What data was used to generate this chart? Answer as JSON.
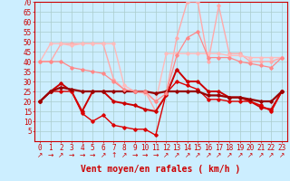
{
  "title": "",
  "xlabel": "Vent moyen/en rafales ( km/h )",
  "bg_color": "#cceeff",
  "grid_color": "#aacccc",
  "x": [
    0,
    1,
    2,
    3,
    4,
    5,
    6,
    7,
    8,
    9,
    10,
    11,
    12,
    13,
    14,
    15,
    16,
    17,
    18,
    19,
    20,
    21,
    22,
    23
  ],
  "ylim": [
    0,
    70
  ],
  "yticks": [
    5,
    10,
    15,
    20,
    25,
    30,
    35,
    40,
    45,
    50,
    55,
    60,
    65,
    70
  ],
  "series": [
    {
      "y": [
        40,
        40,
        49,
        49,
        49,
        49,
        49,
        31,
        26,
        25,
        25,
        15,
        24,
        52,
        70,
        70,
        40,
        68,
        44,
        44,
        40,
        40,
        40,
        42
      ],
      "color": "#ffaaaa",
      "lw": 1.0,
      "marker": "D",
      "ms": 1.8
    },
    {
      "y": [
        40,
        49,
        49,
        48,
        49,
        49,
        49,
        49,
        28,
        25,
        24,
        20,
        44,
        44,
        44,
        44,
        44,
        44,
        43,
        43,
        42,
        42,
        42,
        42
      ],
      "color": "#ffbbbb",
      "lw": 1.0,
      "marker": "D",
      "ms": 1.8
    },
    {
      "y": [
        20,
        25,
        29,
        25,
        15,
        25,
        25,
        20,
        19,
        18,
        16,
        15,
        23,
        36,
        30,
        30,
        25,
        25,
        22,
        22,
        20,
        17,
        16,
        25
      ],
      "color": "#cc0000",
      "lw": 1.4,
      "marker": "D",
      "ms": 1.8
    },
    {
      "y": [
        20,
        25,
        25,
        25,
        14,
        10,
        13,
        8,
        7,
        6,
        6,
        3,
        24,
        30,
        28,
        26,
        21,
        21,
        20,
        20,
        20,
        18,
        15,
        25
      ],
      "color": "#dd0000",
      "lw": 1.0,
      "marker": "D",
      "ms": 1.8
    },
    {
      "y": [
        20,
        25,
        27,
        26,
        25,
        25,
        25,
        25,
        25,
        25,
        25,
        24,
        25,
        25,
        25,
        25,
        23,
        23,
        22,
        22,
        21,
        20,
        20,
        25
      ],
      "color": "#990000",
      "lw": 1.6,
      "marker": "D",
      "ms": 1.8
    },
    {
      "y": [
        40,
        40,
        40,
        37,
        36,
        35,
        34,
        30,
        26,
        25,
        25,
        20,
        24,
        43,
        52,
        55,
        42,
        42,
        42,
        40,
        39,
        38,
        37,
        42
      ],
      "color": "#ff8888",
      "lw": 0.9,
      "marker": "D",
      "ms": 1.8
    }
  ],
  "tick_color": "#cc0000",
  "axis_label_color": "#cc0000",
  "axis_label_fontsize": 7,
  "tick_fontsize": 5.5,
  "arrow_chars": [
    "↗",
    "→",
    "↗",
    "→",
    "→",
    "→",
    "↗",
    "↑",
    "↗",
    "→",
    "→",
    "→",
    "↗",
    "↗",
    "↗",
    "↗",
    "↗",
    "↗",
    "↗",
    "↗",
    "↗",
    "↗",
    "↗",
    "↗"
  ]
}
